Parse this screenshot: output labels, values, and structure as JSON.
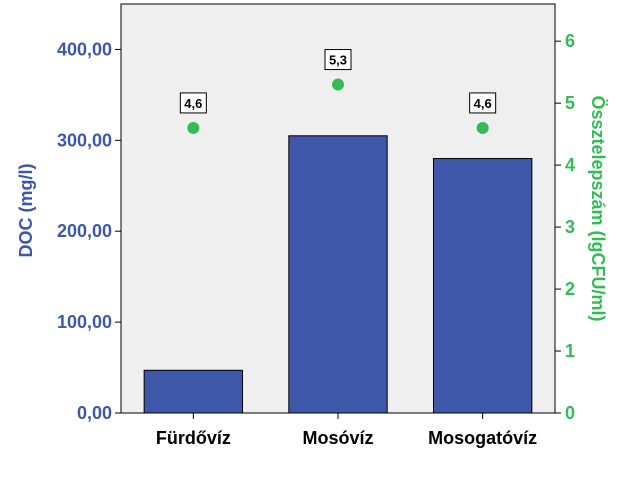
{
  "chart_data": {
    "type": "bar",
    "categories": [
      "Fürdővíz",
      "Mosóvíz",
      "Mosogatóvíz"
    ],
    "series": [
      {
        "axis": "left",
        "kind": "bar",
        "values": [
          47,
          305,
          280
        ],
        "color": "#3F57A8"
      },
      {
        "axis": "right",
        "kind": "scatter",
        "values": [
          4.6,
          5.3,
          4.6
        ],
        "data_labels": [
          "4,6",
          "5,3",
          "4,6"
        ],
        "color": "#33BB55"
      }
    ],
    "y_left": {
      "label": "DOC (mg/l)",
      "ylim": [
        0,
        450
      ],
      "ticks": [
        0,
        100,
        200,
        300,
        400
      ],
      "tick_labels": [
        "0,00",
        "100,00",
        "200,00",
        "300,00",
        "400,00"
      ],
      "color": "#3F57A8"
    },
    "y_right": {
      "label": "Össztelepszám (lgCFU/ml)",
      "ylim": [
        0,
        6.6
      ],
      "ticks": [
        0,
        1,
        2,
        3,
        4,
        5,
        6
      ],
      "tick_labels": [
        "0",
        "1",
        "2",
        "3",
        "4",
        "5",
        "6"
      ],
      "color": "#33BB55"
    },
    "plot_background": "#EFEFEF",
    "grid": false,
    "legend": "none"
  }
}
